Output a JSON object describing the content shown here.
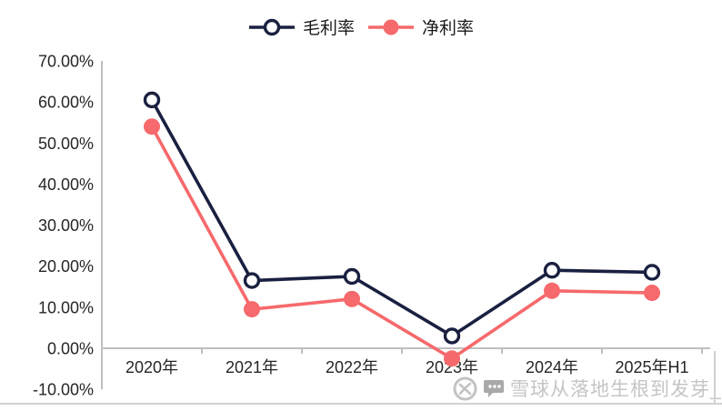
{
  "chart_data": {
    "type": "line",
    "categories": [
      "2020年",
      "2021年",
      "2022年",
      "2023年",
      "2024年",
      "2025年H1"
    ],
    "series": [
      {
        "name": "毛利率",
        "color": "#1a2040",
        "marker": "open-circle",
        "values": [
          60.5,
          16.5,
          17.5,
          3.0,
          19.0,
          18.5
        ]
      },
      {
        "name": "净利率",
        "color": "#f6696c",
        "marker": "filled-circle",
        "values": [
          54.0,
          9.5,
          12.0,
          -2.5,
          14.0,
          13.5
        ]
      }
    ],
    "title": "",
    "xlabel": "",
    "ylabel": "",
    "ylim": [
      -10,
      70
    ],
    "y_tick_step": 10,
    "y_tick_labels": [
      "70.00%",
      "60.00%",
      "50.00%",
      "40.00%",
      "30.00%",
      "20.00%",
      "10.00%",
      "0.00%",
      "-10.00%"
    ],
    "grid": false,
    "legend_position": "top-center",
    "axis_color": "#bfbfbf"
  },
  "watermark": {
    "brand_icon": "xueqiu-logo",
    "chat_icon": "speech-bubble-icon",
    "text": "雪球从落地生根到发芽_",
    "color": "#c5c5c5"
  }
}
